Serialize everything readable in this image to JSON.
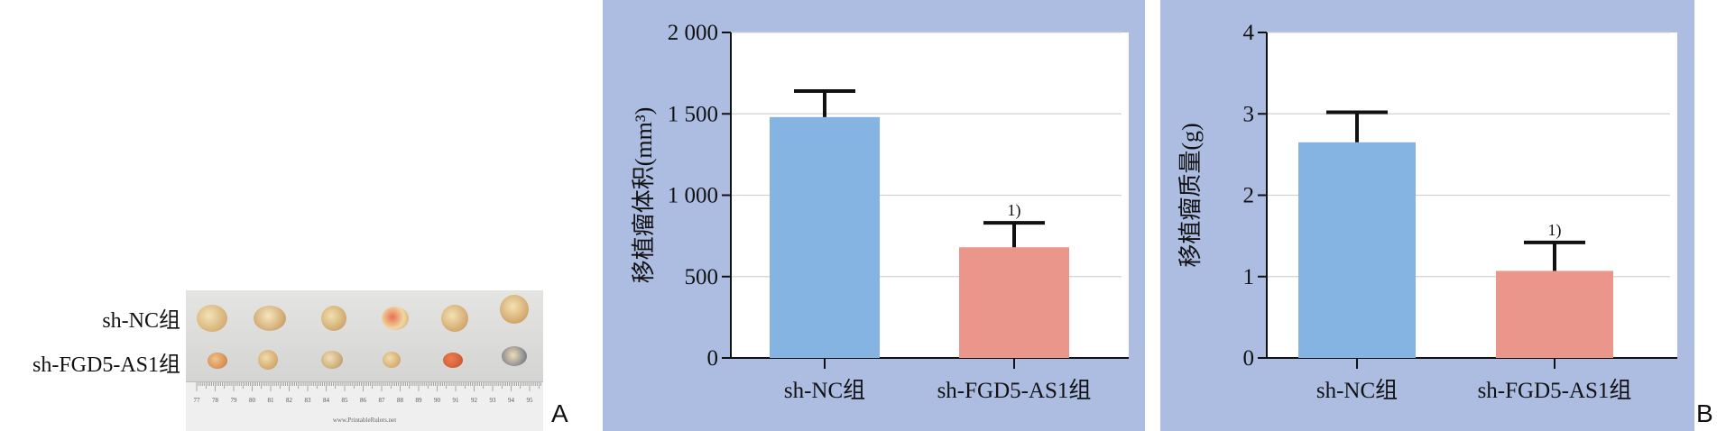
{
  "panel_a": {
    "letter": "A",
    "row_labels": [
      "sh-NC组",
      "sh-FGD5-AS1组"
    ],
    "ruler_numbers": [
      "77",
      "78",
      "79",
      "80",
      "81",
      "82",
      "83",
      "84",
      "85",
      "86",
      "87",
      "88",
      "89",
      "90",
      "91",
      "92",
      "93",
      "94",
      "95"
    ],
    "ruler_credit": "www.PrintableRulers.net"
  },
  "panel_b_letter": "B",
  "colors": {
    "panel_bg": "#adbde2",
    "bar_nc": "#85b4e2",
    "bar_fgd5": "#eb968a",
    "error": "#111111"
  },
  "chart_data": [
    {
      "type": "bar",
      "ylabel": "移植瘤体积(mm³)",
      "categories": [
        "sh-NC组",
        "sh-FGD5-AS1组"
      ],
      "values": [
        1480,
        680
      ],
      "errors": [
        160,
        150
      ],
      "ylim": [
        0,
        2000
      ],
      "yticks": [
        0,
        500,
        1000,
        1500,
        2000
      ],
      "ytick_labels": [
        "0",
        "500",
        "1 000",
        "1 500",
        "2 000"
      ],
      "annotations": [
        "",
        "1)"
      ],
      "grid": true
    },
    {
      "type": "bar",
      "ylabel": "移植瘤质量(g)",
      "categories": [
        "sh-NC组",
        "sh-FGD5-AS1组"
      ],
      "values": [
        2.65,
        1.07
      ],
      "errors": [
        0.37,
        0.35
      ],
      "ylim": [
        0,
        4
      ],
      "yticks": [
        0,
        1,
        2,
        3,
        4
      ],
      "ytick_labels": [
        "0",
        "1",
        "2",
        "3",
        "4"
      ],
      "annotations": [
        "",
        "1)"
      ],
      "grid": true
    }
  ]
}
